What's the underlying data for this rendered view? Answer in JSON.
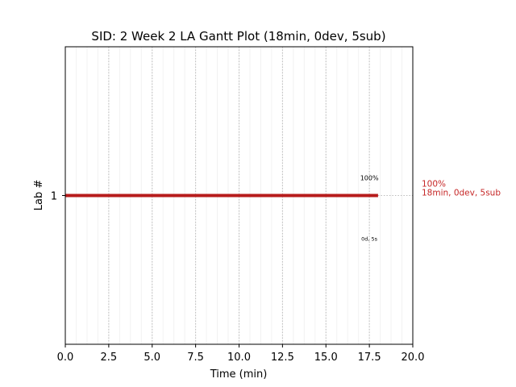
{
  "chart_data": {
    "type": "gantt",
    "title": "SID: 2 Week 2 LA Gantt Plot (18min, 0dev, 5sub)",
    "xlabel": "Time (min)",
    "ylabel": "Lab #",
    "xlim": [
      0,
      20
    ],
    "xticks": [
      "0.0",
      "2.5",
      "5.0",
      "7.5",
      "10.0",
      "12.5",
      "15.0",
      "17.5",
      "20.0"
    ],
    "xtick_values": [
      0,
      2.5,
      5,
      7.5,
      10,
      12.5,
      15,
      17.5,
      20
    ],
    "minor_step": 0.625,
    "grid": true,
    "bars": [
      {
        "lab": "1",
        "start": 0,
        "end": 18,
        "color": "#b71c1c",
        "percent_label": "100%",
        "detail_label": "0d, 5s",
        "right_label_1": "100%",
        "right_label_2": "18min, 0dev, 5sub",
        "right_label_color": "#c62828"
      }
    ]
  }
}
